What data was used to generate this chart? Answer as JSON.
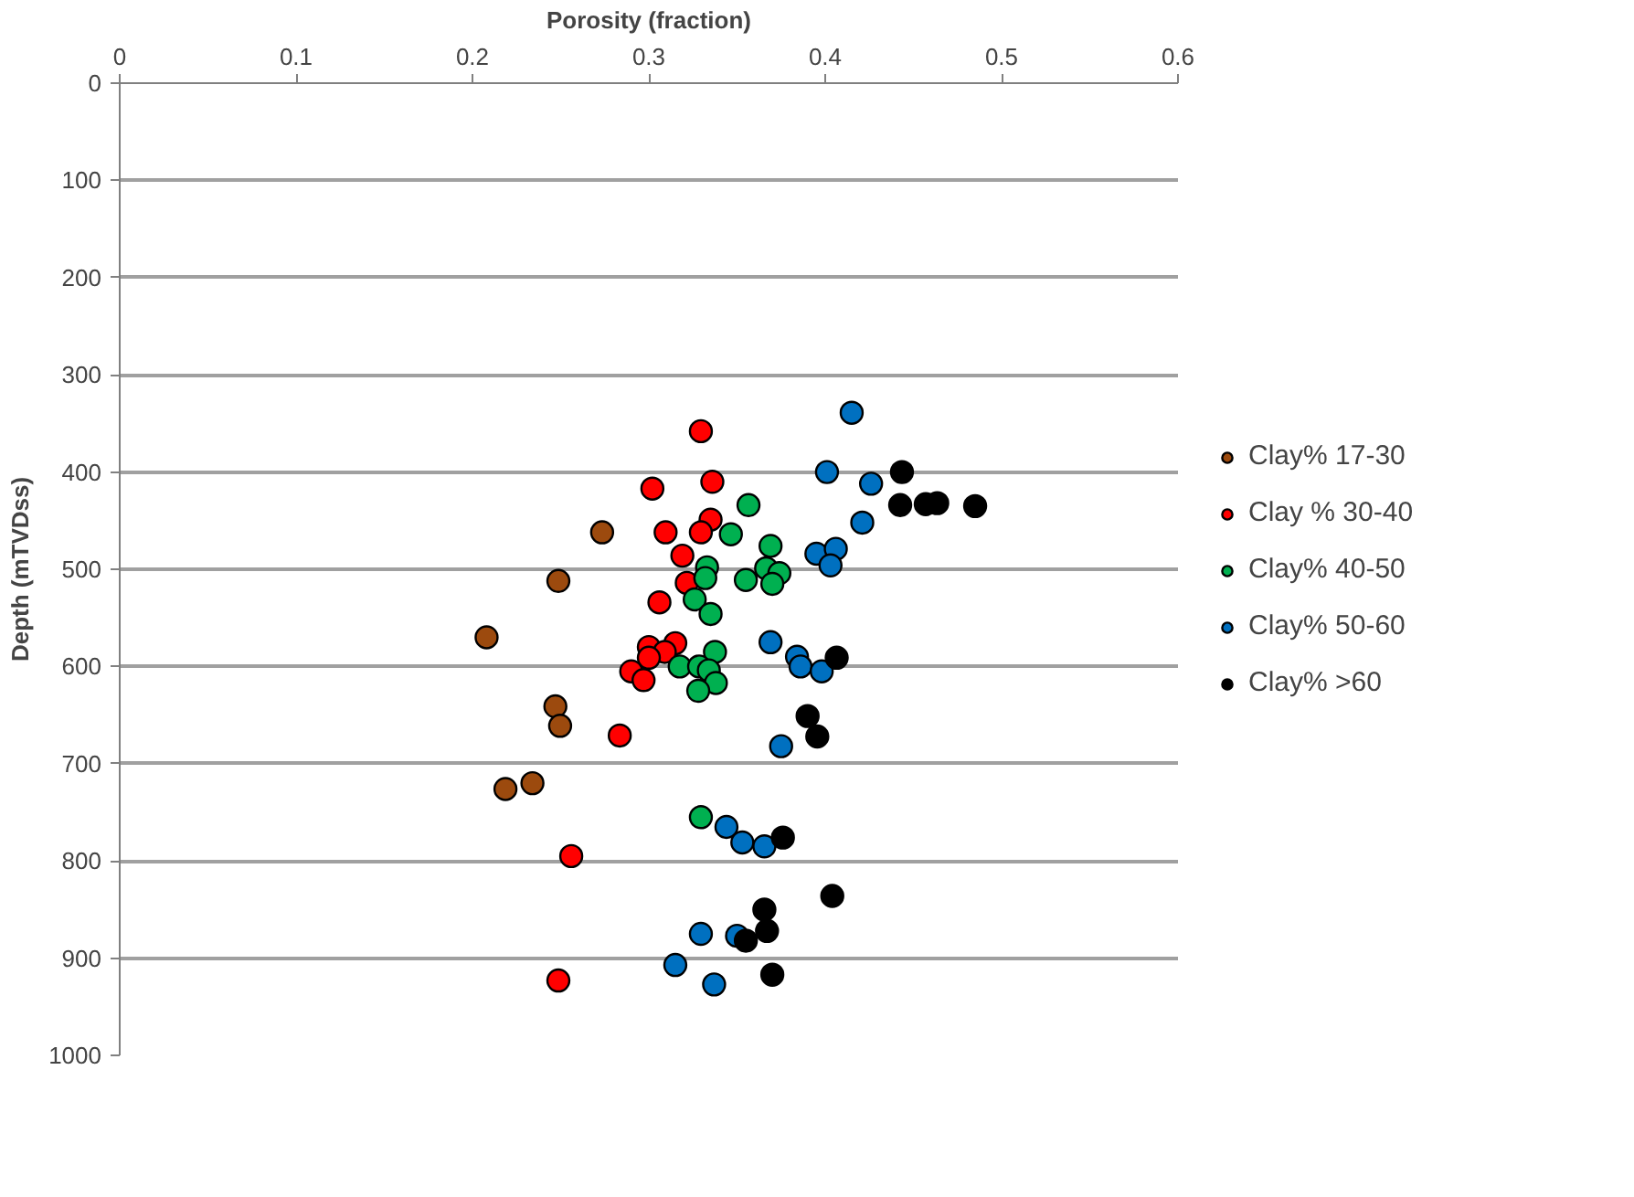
{
  "chart_data": {
    "type": "scatter",
    "xlabel": "Porosity (fraction)",
    "ylabel": "Depth (mTVDss)",
    "xlim": [
      0,
      0.6
    ],
    "xticks": [
      0,
      0.1,
      0.2,
      0.3,
      0.4,
      0.5,
      0.6
    ],
    "ylim": [
      1000,
      0
    ],
    "yticks": [
      0,
      100,
      200,
      300,
      400,
      500,
      600,
      700,
      800,
      900,
      1000
    ],
    "grid": "y",
    "legend": "right",
    "marker": "circle",
    "series": [
      {
        "name": "Clay% 17-30",
        "color": "#9c4a0e",
        "x": [
          0.2735,
          0.2487,
          0.247,
          0.2497,
          0.208,
          0.2187,
          0.234
        ],
        "values": [
          462,
          512,
          641,
          661,
          570,
          726,
          720
        ]
      },
      {
        "name": "Clay % 30-40",
        "color": "#ff0000",
        "x": [
          0.3295,
          0.302,
          0.336,
          0.335,
          0.3095,
          0.3295,
          0.319,
          0.3215,
          0.306,
          0.315,
          0.3,
          0.309,
          0.3,
          0.29,
          0.297,
          0.2835,
          0.256,
          0.2487
        ],
        "values": [
          358,
          417,
          410,
          449,
          462,
          462,
          486,
          514,
          534,
          576,
          580,
          585,
          591,
          605,
          614,
          671,
          795,
          923
        ]
      },
      {
        "name": "Clay% 40-50",
        "color": "#00b050",
        "x": [
          0.3565,
          0.3465,
          0.369,
          0.333,
          0.332,
          0.355,
          0.3665,
          0.374,
          0.37,
          0.326,
          0.335,
          0.3375,
          0.3175,
          0.3285,
          0.334,
          0.338,
          0.328,
          0.3295
        ],
        "values": [
          434,
          464,
          476,
          498,
          509,
          511,
          499,
          504,
          515,
          531,
          546,
          585,
          600,
          600,
          604,
          617,
          625,
          755
        ]
      },
      {
        "name": "Clay% 50-60",
        "color": "#0070c0",
        "x": [
          0.415,
          0.401,
          0.426,
          0.421,
          0.395,
          0.406,
          0.403,
          0.369,
          0.384,
          0.386,
          0.398,
          0.375,
          0.344,
          0.353,
          0.3655,
          0.3295,
          0.35,
          0.315,
          0.337
        ],
        "values": [
          339,
          400,
          412,
          452,
          484,
          479,
          496,
          575,
          590,
          600,
          605,
          682,
          765,
          781,
          785,
          875,
          877,
          907,
          927
        ]
      },
      {
        "name": "Clay% >60",
        "color": "#000000",
        "x": [
          0.4435,
          0.4425,
          0.4635,
          0.485,
          0.4065,
          0.39,
          0.3955,
          0.376,
          0.404,
          0.3655,
          0.367,
          0.355,
          0.37,
          0.457
        ],
        "values": [
          400,
          434,
          432,
          435,
          591,
          651,
          672,
          776,
          836,
          850,
          872,
          882,
          917,
          433
        ]
      }
    ]
  }
}
